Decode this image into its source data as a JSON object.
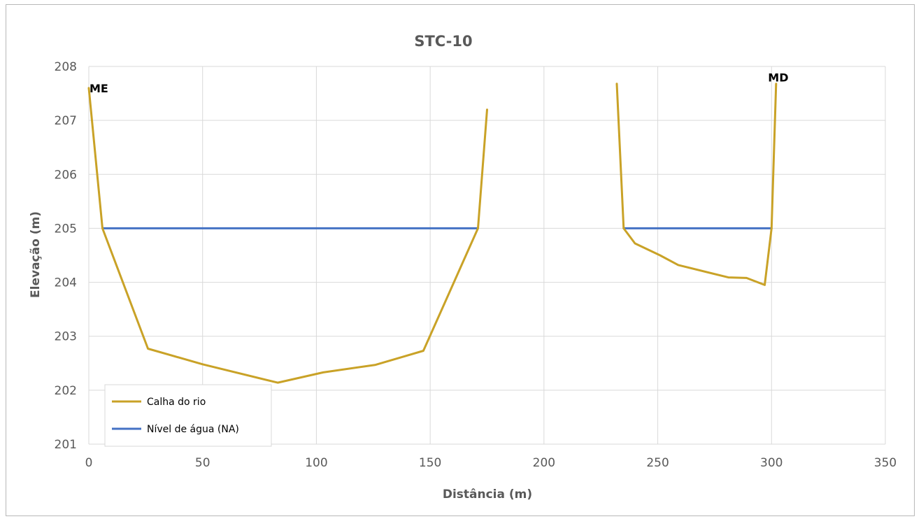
{
  "chart_data": {
    "type": "line",
    "title": "STC-10",
    "xlabel": "Distância (m)",
    "ylabel": "Elevação (m)",
    "xlim": [
      0,
      350
    ],
    "ylim": [
      201,
      208
    ],
    "xticks": [
      0,
      50,
      100,
      150,
      200,
      250,
      300,
      350
    ],
    "yticks": [
      201,
      202,
      203,
      204,
      205,
      206,
      207,
      208
    ],
    "grid": true,
    "legend_position": "bottom-left",
    "annotations": [
      {
        "text": "ME",
        "x": 0,
        "y": 207.6
      },
      {
        "text": "MD",
        "x": 300,
        "y": 207.8
      }
    ],
    "series": [
      {
        "name": "Calha do rio",
        "color": "#C9A227",
        "segments": [
          [
            [
              0,
              207.6
            ],
            [
              6,
              205.0
            ],
            [
              26,
              202.77
            ],
            [
              50,
              202.48
            ],
            [
              83,
              202.14
            ],
            [
              103,
              202.33
            ],
            [
              126,
              202.47
            ],
            [
              147,
              202.73
            ],
            [
              171,
              205.0
            ],
            [
              175,
              207.2
            ]
          ],
          [
            [
              232,
              207.68
            ],
            [
              235,
              205.0
            ],
            [
              240,
              204.72
            ],
            [
              251,
              204.5
            ],
            [
              259,
              204.32
            ],
            [
              281,
              204.09
            ],
            [
              289,
              204.08
            ],
            [
              297,
              203.95
            ],
            [
              300,
              205.0
            ],
            [
              302,
              207.68
            ]
          ]
        ]
      },
      {
        "name": "Nível de água (NA)",
        "color": "#4472C4",
        "segments": [
          [
            [
              6,
              205.0
            ],
            [
              171,
              205.0
            ]
          ],
          [
            [
              235,
              205.0
            ],
            [
              300,
              205.0
            ]
          ]
        ]
      }
    ]
  }
}
